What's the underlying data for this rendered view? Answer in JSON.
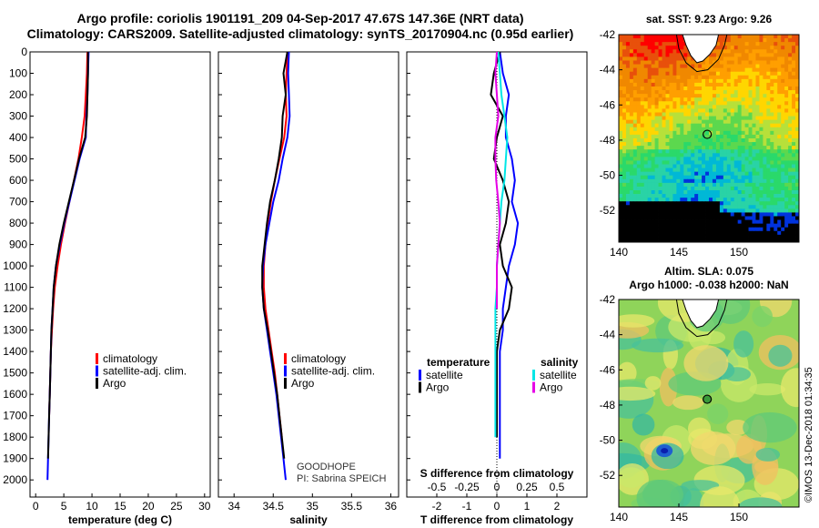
{
  "title_line1": "Argo profile: coriolis 1901191_209 04-Sep-2017 47.67S 147.36E (NRT data)",
  "title_line2": "Climatology: CARS2009. Satellite-adjusted climatology: synTS_20170904.nc (0.95d earlier)",
  "credit": "©IMOS 13-Dec-2018 01:34:35",
  "colors": {
    "climatology": "#ff0000",
    "satellite_adj": "#0000ff",
    "argo": "#000000",
    "s_satellite": "#00e6e6",
    "s_argo": "#e600e6"
  },
  "depth_axis": {
    "ticks": [
      0,
      100,
      200,
      300,
      400,
      500,
      600,
      700,
      800,
      900,
      1000,
      1100,
      1200,
      1300,
      1400,
      1500,
      1600,
      1700,
      1800,
      1900,
      2000
    ],
    "ylim": [
      0,
      2080
    ]
  },
  "chart_data": [
    {
      "type": "line",
      "xlabel": "temperature (deg C)",
      "xlim": [
        -1,
        31
      ],
      "xticks": [
        0,
        5,
        10,
        15,
        20,
        25,
        30
      ],
      "ylim": [
        0,
        2080
      ],
      "legend": {
        "placement": "bottom-right",
        "entries": [
          "climatology",
          "satellite-adj. clim.",
          "Argo"
        ]
      },
      "series": [
        {
          "name": "climatology",
          "color": "#ff0000",
          "x": [
            9.2,
            9.1,
            8.9,
            8.7,
            8.2,
            7.6,
            6.8,
            6.0,
            5.2,
            4.5,
            3.9,
            3.4,
            3.1,
            2.9,
            2.7,
            2.6,
            2.5,
            2.4
          ],
          "y": [
            0,
            100,
            200,
            300,
            400,
            500,
            600,
            700,
            800,
            900,
            1000,
            1100,
            1200,
            1300,
            1400,
            1500,
            1600,
            1700
          ]
        },
        {
          "name": "satellite-adj. clim.",
          "color": "#0000ff",
          "x": [
            9.4,
            9.3,
            9.2,
            9.0,
            8.9,
            7.8,
            6.9,
            6.0,
            5.1,
            4.3,
            3.6,
            3.2,
            3.0,
            2.8,
            2.7,
            2.6,
            2.5,
            2.4,
            2.3,
            2.2,
            2.1
          ],
          "y": [
            0,
            100,
            200,
            300,
            400,
            500,
            600,
            700,
            800,
            900,
            1000,
            1100,
            1200,
            1300,
            1400,
            1500,
            1600,
            1700,
            1800,
            1900,
            2000
          ]
        },
        {
          "name": "Argo",
          "color": "#000000",
          "x": [
            9.3,
            9.3,
            9.2,
            9.1,
            8.8,
            7.7,
            6.8,
            5.9,
            5.0,
            4.2,
            3.6,
            3.2,
            3.0,
            2.8,
            2.7,
            2.6,
            2.5,
            2.4,
            2.3,
            2.2
          ],
          "y": [
            0,
            100,
            200,
            300,
            400,
            500,
            600,
            700,
            800,
            900,
            1000,
            1100,
            1200,
            1300,
            1400,
            1500,
            1600,
            1700,
            1800,
            1900
          ]
        }
      ]
    },
    {
      "type": "line",
      "xlabel": "salinity",
      "xlim": [
        33.8,
        36.1
      ],
      "xticks": [
        34,
        34.5,
        35,
        35.5,
        36
      ],
      "ylim": [
        0,
        2080
      ],
      "legend": {
        "placement": "bottom-right",
        "entries": [
          "climatology",
          "satellite-adj. clim.",
          "Argo"
        ]
      },
      "annotation": [
        "GOODHOPE",
        "PI: Sabrina SPEICH"
      ],
      "series": [
        {
          "name": "climatology",
          "color": "#ff0000",
          "x": [
            34.68,
            34.67,
            34.66,
            34.67,
            34.64,
            34.58,
            34.52,
            34.47,
            34.43,
            34.4,
            34.38,
            34.38,
            34.4,
            34.44,
            34.48,
            34.52,
            34.55,
            34.58,
            34.61
          ],
          "y": [
            0,
            100,
            200,
            300,
            400,
            500,
            600,
            700,
            800,
            900,
            1000,
            1100,
            1200,
            1300,
            1400,
            1500,
            1600,
            1700,
            1800
          ]
        },
        {
          "name": "satellite-adj. clim.",
          "color": "#0000ff",
          "x": [
            34.7,
            34.69,
            34.7,
            34.71,
            34.68,
            34.62,
            34.57,
            34.5,
            34.45,
            34.4,
            34.37,
            34.36,
            34.38,
            34.42,
            34.46,
            34.5,
            34.54,
            34.57,
            34.6,
            34.63,
            34.66
          ],
          "y": [
            0,
            100,
            200,
            300,
            400,
            500,
            600,
            700,
            800,
            900,
            1000,
            1100,
            1200,
            1300,
            1400,
            1500,
            1600,
            1700,
            1800,
            1900,
            2000
          ]
        },
        {
          "name": "Argo",
          "color": "#000000",
          "x": [
            34.68,
            34.63,
            34.66,
            34.62,
            34.61,
            34.57,
            34.52,
            34.46,
            34.42,
            34.39,
            34.36,
            34.36,
            34.38,
            34.43,
            34.47,
            34.51,
            34.55,
            34.58,
            34.61,
            34.64
          ],
          "y": [
            0,
            100,
            200,
            300,
            400,
            500,
            600,
            700,
            800,
            900,
            1000,
            1100,
            1200,
            1300,
            1400,
            1500,
            1600,
            1700,
            1800,
            1900
          ]
        }
      ]
    },
    {
      "type": "line",
      "xlabel": "T difference from climatology",
      "xlabel_top": "S difference from climatology",
      "xlim": [
        -3,
        3
      ],
      "xticks": [
        -2,
        -1,
        0,
        1,
        2
      ],
      "xticks_top": [
        "-0.5",
        "-0.25",
        "0",
        "0.25",
        "0.5"
      ],
      "xticks_top_values": [
        -0.5,
        -0.25,
        0,
        0.25,
        0.5
      ],
      "ylim": [
        0,
        2080
      ],
      "legend": {
        "placement": "bottom",
        "temperature_header": "temperature",
        "salinity_header": "salinity",
        "entries_t": [
          "satellite",
          "Argo"
        ],
        "entries_s": [
          "satellite",
          "Argo"
        ]
      },
      "series": [
        {
          "name": "satellite",
          "color": "#0000ff",
          "x": [
            0.1,
            0.2,
            0.4,
            0.3,
            0.3,
            0.5,
            0.6,
            0.5,
            0.7,
            0.6,
            0.4,
            0.3,
            0.2,
            0.2,
            0.1,
            0.1,
            0.1,
            0.1,
            0.1,
            0.1
          ],
          "y": [
            0,
            100,
            200,
            300,
            400,
            500,
            600,
            700,
            800,
            900,
            1000,
            1100,
            1200,
            1300,
            1400,
            1500,
            1600,
            1700,
            1800,
            1900
          ]
        },
        {
          "name": "Argo",
          "color": "#000000",
          "x": [
            0.1,
            -0.1,
            -0.2,
            0.2,
            0.0,
            -0.1,
            0.2,
            0.4,
            0.3,
            0.1,
            0.2,
            0.5,
            0.4,
            0.1,
            0.0,
            0.0,
            0.0,
            0.0,
            0.0
          ],
          "y": [
            0,
            100,
            200,
            300,
            400,
            500,
            600,
            700,
            800,
            900,
            1000,
            1100,
            1200,
            1300,
            1400,
            1500,
            1600,
            1700,
            1800
          ]
        },
        {
          "name": "satellite",
          "color": "#00e6e6",
          "x": [
            0.05,
            0.1,
            0.15,
            0.25,
            0.35,
            0.3,
            0.25,
            0.15,
            0.1,
            0.05,
            0.0,
            0.0,
            -0.05,
            -0.05,
            -0.05,
            -0.05,
            -0.05,
            -0.05,
            -0.05
          ],
          "y": [
            0,
            100,
            200,
            300,
            400,
            500,
            600,
            700,
            800,
            900,
            1000,
            1100,
            1200,
            1300,
            1400,
            1500,
            1600,
            1700,
            1800
          ]
        },
        {
          "name": "Argo",
          "color": "#e600e6",
          "x": [
            0.0,
            -0.05,
            0.0,
            0.05,
            -0.05,
            -0.05,
            -0.02,
            0.05,
            0.1,
            0.05,
            0.0,
            0.0,
            0.0
          ],
          "y": [
            0,
            100,
            200,
            300,
            400,
            500,
            600,
            700,
            800,
            900,
            1000,
            1100,
            1200
          ]
        }
      ]
    },
    {
      "type": "heatmap",
      "title": "sat. SST: 9.23 Argo: 9.26",
      "xticks": [
        140,
        145,
        150
      ],
      "xlim": [
        140,
        155
      ],
      "yticks": [
        -42,
        -44,
        -46,
        -48,
        -50,
        -52
      ],
      "ylim": [
        -53.8,
        -42
      ],
      "marker": {
        "lon": 147.36,
        "lat": -47.67
      }
    },
    {
      "type": "heatmap",
      "title": "Altim. SLA: 0.075",
      "subtitle": "Argo h1000: -0.038 h2000: NaN",
      "xticks": [
        140,
        145,
        150
      ],
      "xlim": [
        140,
        155
      ],
      "yticks": [
        -42,
        -44,
        -46,
        -48,
        -50,
        -52
      ],
      "ylim": [
        -53.8,
        -42
      ],
      "marker": {
        "lon": 147.36,
        "lat": -47.67
      }
    }
  ]
}
